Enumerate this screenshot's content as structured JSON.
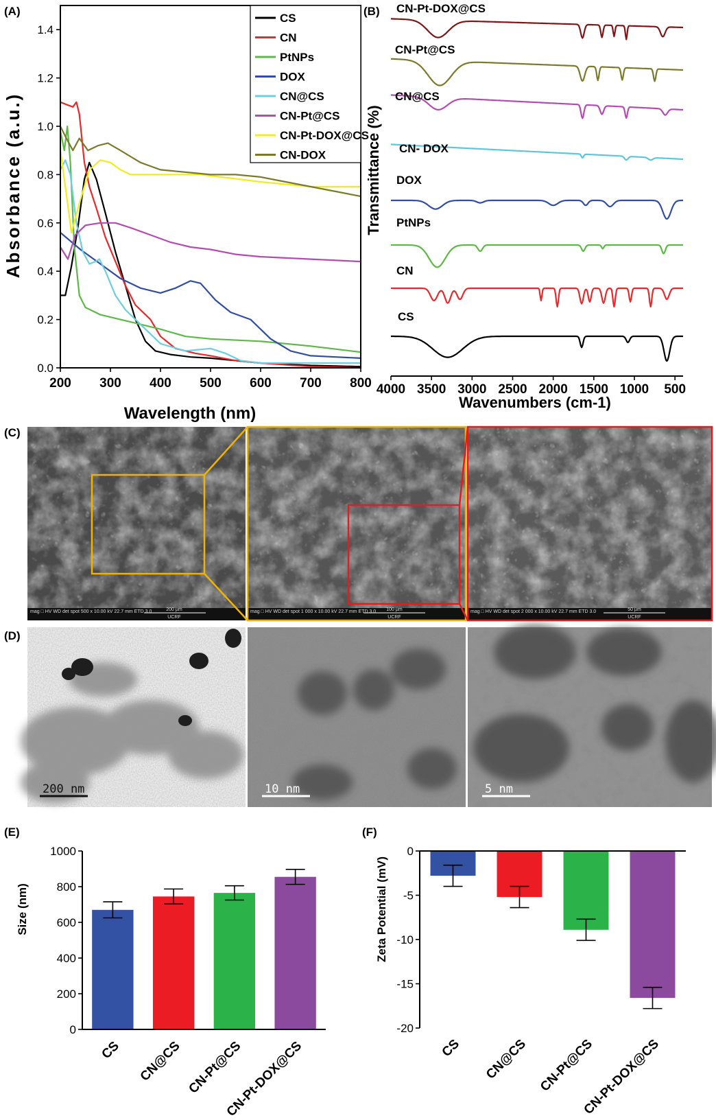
{
  "panels": {
    "a": {
      "label": "(A)"
    },
    "b": {
      "label": "(B)"
    },
    "c": {
      "label": "(C)"
    },
    "d": {
      "label": "(D)"
    },
    "e": {
      "label": "(E)"
    },
    "f": {
      "label": "(F)"
    }
  },
  "chart_data": [
    {
      "id": "A",
      "type": "line",
      "xlabel": "Wavelength (nm)",
      "ylabel": "Absorbance (a.u.)",
      "xlim": [
        200,
        800
      ],
      "ylim": [
        0,
        1.5
      ],
      "xticks": [
        "200",
        "300",
        "400",
        "500",
        "600",
        "700",
        "800"
      ],
      "yticks": [
        "0.0",
        "0.2",
        "0.4",
        "0.6",
        "0.8",
        "1.0",
        "1.2",
        "1.4"
      ],
      "legend_position": "top-right",
      "series": [
        {
          "name": "CS",
          "color": "#000000",
          "points": [
            [
              200,
              0.3
            ],
            [
              210,
              0.3
            ],
            [
              222,
              0.42
            ],
            [
              235,
              0.58
            ],
            [
              248,
              0.78
            ],
            [
              258,
              0.85
            ],
            [
              272,
              0.78
            ],
            [
              290,
              0.64
            ],
            [
              310,
              0.48
            ],
            [
              330,
              0.34
            ],
            [
              350,
              0.2
            ],
            [
              370,
              0.11
            ],
            [
              390,
              0.07
            ],
            [
              420,
              0.055
            ],
            [
              460,
              0.045
            ],
            [
              500,
              0.04
            ],
            [
              550,
              0.03
            ],
            [
              600,
              0.02
            ],
            [
              700,
              0.01
            ],
            [
              800,
              0.005
            ]
          ]
        },
        {
          "name": "CN",
          "color": "#e8282b",
          "points": [
            [
              200,
              1.1
            ],
            [
              212,
              1.09
            ],
            [
              225,
              1.08
            ],
            [
              232,
              1.1
            ],
            [
              238,
              1.05
            ],
            [
              248,
              0.85
            ],
            [
              258,
              0.75
            ],
            [
              272,
              0.66
            ],
            [
              290,
              0.54
            ],
            [
              310,
              0.44
            ],
            [
              330,
              0.34
            ],
            [
              350,
              0.26
            ],
            [
              380,
              0.2
            ],
            [
              400,
              0.13
            ],
            [
              430,
              0.08
            ],
            [
              470,
              0.06
            ],
            [
              500,
              0.05
            ],
            [
              550,
              0.03
            ],
            [
              600,
              0.02
            ],
            [
              700,
              0.005
            ],
            [
              800,
              0.0
            ]
          ]
        },
        {
          "name": "PtNPs",
          "color": "#5cb946",
          "points": [
            [
              200,
              0.98
            ],
            [
              208,
              0.9
            ],
            [
              214,
              1.0
            ],
            [
              220,
              0.85
            ],
            [
              228,
              0.5
            ],
            [
              238,
              0.3
            ],
            [
              250,
              0.25
            ],
            [
              280,
              0.22
            ],
            [
              320,
              0.2
            ],
            [
              360,
              0.18
            ],
            [
              400,
              0.16
            ],
            [
              450,
              0.13
            ],
            [
              500,
              0.12
            ],
            [
              600,
              0.11
            ],
            [
              700,
              0.09
            ],
            [
              800,
              0.065
            ]
          ]
        },
        {
          "name": "DOX",
          "color": "#2f4da3",
          "points": [
            [
              200,
              0.56
            ],
            [
              240,
              0.49
            ],
            [
              280,
              0.43
            ],
            [
              320,
              0.37
            ],
            [
              360,
              0.33
            ],
            [
              400,
              0.31
            ],
            [
              430,
              0.33
            ],
            [
              460,
              0.36
            ],
            [
              480,
              0.35
            ],
            [
              510,
              0.28
            ],
            [
              540,
              0.23
            ],
            [
              580,
              0.2
            ],
            [
              620,
              0.12
            ],
            [
              660,
              0.07
            ],
            [
              700,
              0.05
            ],
            [
              750,
              0.045
            ],
            [
              800,
              0.04
            ]
          ]
        },
        {
          "name": "CN@CS",
          "color": "#6ccfe0",
          "points": [
            [
              200,
              0.82
            ],
            [
              210,
              0.86
            ],
            [
              220,
              0.8
            ],
            [
              232,
              0.6
            ],
            [
              245,
              0.48
            ],
            [
              258,
              0.43
            ],
            [
              270,
              0.44
            ],
            [
              278,
              0.45
            ],
            [
              290,
              0.4
            ],
            [
              310,
              0.3
            ],
            [
              330,
              0.24
            ],
            [
              360,
              0.18
            ],
            [
              400,
              0.1
            ],
            [
              450,
              0.07
            ],
            [
              500,
              0.08
            ],
            [
              530,
              0.06
            ],
            [
              560,
              0.03
            ],
            [
              600,
              0.02
            ],
            [
              700,
              0.02
            ],
            [
              800,
              0.02
            ]
          ]
        },
        {
          "name": "CN-Pt@CS",
          "color": "#b44bb3",
          "points": [
            [
              200,
              0.5
            ],
            [
              215,
              0.45
            ],
            [
              230,
              0.55
            ],
            [
              250,
              0.59
            ],
            [
              280,
              0.6
            ],
            [
              310,
              0.6
            ],
            [
              340,
              0.58
            ],
            [
              380,
              0.55
            ],
            [
              420,
              0.52
            ],
            [
              460,
              0.5
            ],
            [
              500,
              0.49
            ],
            [
              550,
              0.47
            ],
            [
              600,
              0.46
            ],
            [
              700,
              0.45
            ],
            [
              800,
              0.44
            ]
          ]
        },
        {
          "name": "CN-Pt-DOX@CS",
          "color": "#f2ec1f",
          "points": [
            [
              200,
              0.9
            ],
            [
              210,
              0.75
            ],
            [
              222,
              0.56
            ],
            [
              238,
              0.68
            ],
            [
              258,
              0.82
            ],
            [
              280,
              0.86
            ],
            [
              300,
              0.85
            ],
            [
              320,
              0.82
            ],
            [
              340,
              0.8
            ],
            [
              380,
              0.8
            ],
            [
              420,
              0.8
            ],
            [
              450,
              0.8
            ],
            [
              480,
              0.8
            ],
            [
              520,
              0.79
            ],
            [
              560,
              0.78
            ],
            [
              600,
              0.77
            ],
            [
              650,
              0.76
            ],
            [
              700,
              0.75
            ],
            [
              800,
              0.75
            ]
          ]
        },
        {
          "name": "CN-DOX",
          "color": "#7b7a2b",
          "points": [
            [
              200,
              1.0
            ],
            [
              212,
              0.95
            ],
            [
              225,
              0.9
            ],
            [
              238,
              0.95
            ],
            [
              255,
              0.9
            ],
            [
              275,
              0.92
            ],
            [
              295,
              0.93
            ],
            [
              320,
              0.9
            ],
            [
              360,
              0.85
            ],
            [
              400,
              0.82
            ],
            [
              450,
              0.81
            ],
            [
              500,
              0.8
            ],
            [
              550,
              0.8
            ],
            [
              600,
              0.79
            ],
            [
              650,
              0.77
            ],
            [
              700,
              0.75
            ],
            [
              750,
              0.73
            ],
            [
              800,
              0.71
            ]
          ]
        }
      ]
    },
    {
      "id": "B",
      "type": "line",
      "xlabel": "Wavenumbers (cm-1)",
      "ylabel": "Transmittance (%)",
      "xlim": [
        4000,
        400
      ],
      "xticks": [
        "4000",
        "3500",
        "3000",
        "2500",
        "2000",
        "1500",
        "1000",
        "500"
      ],
      "series": [
        {
          "name": "CN-Pt-DOX@CS",
          "color": "#7c1717"
        },
        {
          "name": "CN-Pt@CS",
          "color": "#7b7a2b"
        },
        {
          "name": "CN@CS",
          "color": "#b44bb3"
        },
        {
          "name": "CN- DOX",
          "color": "#5cc6dd"
        },
        {
          "name": "DOX",
          "color": "#2f4da3"
        },
        {
          "name": "PtNPs",
          "color": "#5cb946"
        },
        {
          "name": "CN",
          "color": "#e8282b"
        },
        {
          "name": "CS",
          "color": "#000000"
        }
      ]
    },
    {
      "id": "E",
      "type": "bar",
      "ylabel": "Size (nm)",
      "ylim": [
        0,
        1000
      ],
      "yticks": [
        "0",
        "200",
        "400",
        "600",
        "800",
        "1000"
      ],
      "categories": [
        "CS",
        "CN@CS",
        "CN-Pt@CS",
        "CN-Pt-DOX@CS"
      ],
      "values": [
        670,
        745,
        765,
        855
      ],
      "errors": [
        45,
        42,
        40,
        42
      ],
      "colors": [
        "#3452a3",
        "#ec1c24",
        "#2bb34a",
        "#8c4a9e"
      ]
    },
    {
      "id": "F",
      "type": "bar",
      "ylabel": "Zeta Potential (mV)",
      "ylim": [
        -20,
        0
      ],
      "yticks": [
        "0",
        "-5",
        "-10",
        "-15",
        "-20"
      ],
      "categories": [
        "CS",
        "CN@CS",
        "CN-Pt@CS",
        "CN-Pt-DOX@CS"
      ],
      "values": [
        -2.8,
        -5.2,
        -8.9,
        -16.6
      ],
      "errors": [
        1.2,
        1.2,
        1.2,
        1.2
      ],
      "colors": [
        "#3452a3",
        "#ec1c24",
        "#2bb34a",
        "#8c4a9e"
      ]
    }
  ],
  "sem": {
    "panels": [
      {
        "name": "sem-500x",
        "scale": "200 µm",
        "meta": "mag □  HV  WD  det spot  500 x 10.00 kV 22.7 mm ETD 3.0",
        "lab": "UCRF"
      },
      {
        "name": "sem-1000x",
        "scale": "100 µm",
        "meta": "mag □  HV  WD  det spot  1 000 x 10.00 kV 22.7 mm ETD 3.0",
        "lab": "UCRF"
      },
      {
        "name": "sem-2000x",
        "scale": "50 µm",
        "meta": "mag □  HV  WD  det spot  2 000 x 10.00 kV 22.7 mm ETD 3.0",
        "lab": "UCRF"
      }
    ]
  },
  "tem": {
    "panels": [
      {
        "name": "tem-low",
        "scale": "200 nm"
      },
      {
        "name": "tem-mid",
        "scale": "10 nm"
      },
      {
        "name": "tem-high",
        "scale": "5 nm"
      }
    ]
  }
}
